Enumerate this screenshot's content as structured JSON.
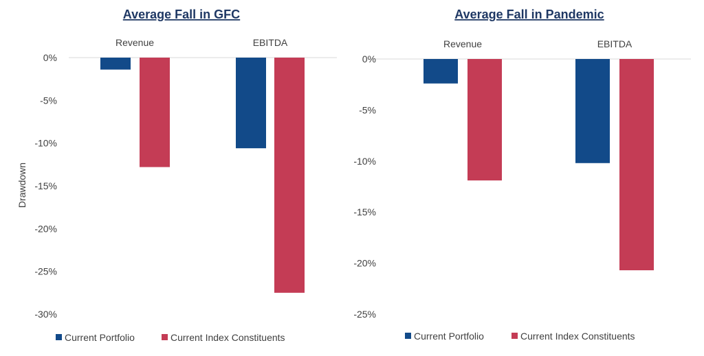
{
  "colors": {
    "portfolio": "#124a89",
    "index": "#c43c55",
    "axis": "#d9d9d9",
    "title": "#1f3864"
  },
  "chart_data": [
    {
      "type": "bar",
      "title": "Average Fall in GFC",
      "ylabel": "Drawdown",
      "categories": [
        "Revenue",
        "EBITDA"
      ],
      "ylim": [
        -30,
        0
      ],
      "yticks": [
        0,
        -5,
        -10,
        -15,
        -20,
        -25,
        -30
      ],
      "ytick_labels": [
        "0%",
        "-5%",
        "-10%",
        "-15%",
        "-20%",
        "-25%",
        "-30%"
      ],
      "series": [
        {
          "name": "Current Portfolio",
          "values": [
            -1.4,
            -10.6
          ]
        },
        {
          "name": "Current Index Constituents",
          "values": [
            -12.8,
            -27.5
          ]
        }
      ],
      "legend": "bottom",
      "grid": false
    },
    {
      "type": "bar",
      "title": "Average Fall in Pandemic",
      "ylabel": "",
      "categories": [
        "Revenue",
        "EBITDA"
      ],
      "ylim": [
        -25,
        0
      ],
      "yticks": [
        0,
        -5,
        -10,
        -15,
        -20,
        -25
      ],
      "ytick_labels": [
        "0%",
        "-5%",
        "-10%",
        "-15%",
        "-20%",
        "-25%"
      ],
      "series": [
        {
          "name": "Current Portfolio",
          "values": [
            -2.4,
            -10.2
          ]
        },
        {
          "name": "Current Index Constituents",
          "values": [
            -11.9,
            -20.7
          ]
        }
      ],
      "legend": "bottom",
      "grid": false
    }
  ]
}
